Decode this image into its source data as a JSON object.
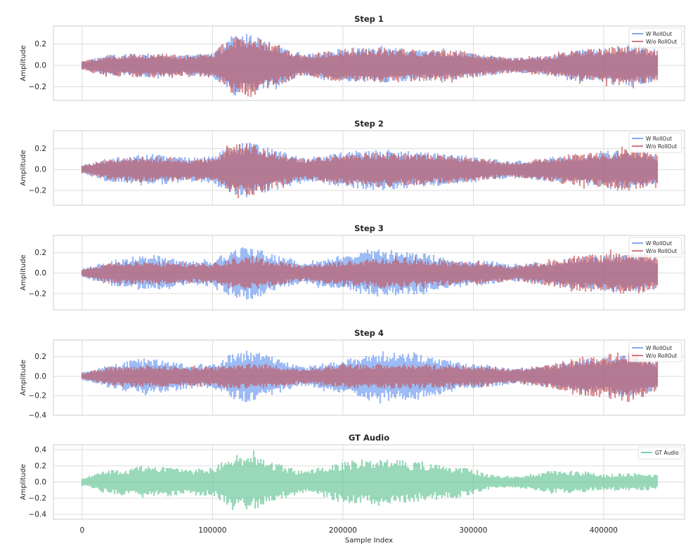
{
  "chart_data": [
    {
      "type": "line",
      "title": "Step 1",
      "xlabel": "",
      "ylabel": "Amplitude",
      "xlim": [
        -22000,
        462000
      ],
      "ylim": [
        -0.33,
        0.37
      ],
      "yticks": [
        -0.2,
        0.0,
        0.2
      ],
      "ytick_labels": [
        "−0.2",
        "0.0",
        "0.2"
      ],
      "xticks": [
        0,
        100000,
        200000,
        300000,
        400000
      ],
      "grid": true,
      "legend_position": "top-right",
      "series": [
        {
          "name": "W RollOut",
          "color": "#5b8def",
          "envelope_x": [
            0,
            20000,
            50000,
            80000,
            100000,
            115000,
            130000,
            145000,
            170000,
            200000,
            230000,
            260000,
            290000,
            310000,
            330000,
            360000,
            380000,
            400000,
            420000,
            441000
          ],
          "envelope_amp": [
            0.04,
            0.1,
            0.12,
            0.1,
            0.12,
            0.28,
            0.3,
            0.22,
            0.1,
            0.16,
            0.17,
            0.15,
            0.14,
            0.1,
            0.07,
            0.1,
            0.15,
            0.17,
            0.2,
            0.15
          ]
        },
        {
          "name": "W/o RollOut",
          "color": "#c44e52",
          "envelope_x": [
            0,
            20000,
            50000,
            80000,
            100000,
            115000,
            130000,
            145000,
            170000,
            200000,
            230000,
            260000,
            290000,
            310000,
            330000,
            360000,
            380000,
            400000,
            420000,
            441000
          ],
          "envelope_amp": [
            0.04,
            0.1,
            0.12,
            0.1,
            0.12,
            0.28,
            0.3,
            0.22,
            0.1,
            0.16,
            0.17,
            0.15,
            0.14,
            0.1,
            0.07,
            0.1,
            0.15,
            0.17,
            0.2,
            0.15
          ]
        }
      ]
    },
    {
      "type": "line",
      "title": "Step 2",
      "xlabel": "",
      "ylabel": "Amplitude",
      "xlim": [
        -22000,
        462000
      ],
      "ylim": [
        -0.34,
        0.37
      ],
      "yticks": [
        -0.2,
        0.0,
        0.2
      ],
      "ytick_labels": [
        "−0.2",
        "0.0",
        "0.2"
      ],
      "xticks": [
        0,
        100000,
        200000,
        300000,
        400000
      ],
      "grid": true,
      "legend_position": "top-right",
      "series": [
        {
          "name": "W RollOut",
          "color": "#5b8def",
          "envelope_x": [
            0,
            20000,
            50000,
            80000,
            100000,
            115000,
            130000,
            145000,
            170000,
            200000,
            230000,
            260000,
            290000,
            310000,
            330000,
            360000,
            380000,
            400000,
            420000,
            441000
          ],
          "envelope_amp": [
            0.04,
            0.12,
            0.16,
            0.12,
            0.13,
            0.25,
            0.27,
            0.2,
            0.11,
            0.17,
            0.2,
            0.17,
            0.14,
            0.11,
            0.08,
            0.12,
            0.15,
            0.16,
            0.2,
            0.14
          ]
        },
        {
          "name": "W/o RollOut",
          "color": "#c44e52",
          "envelope_x": [
            0,
            20000,
            50000,
            80000,
            100000,
            115000,
            130000,
            145000,
            170000,
            200000,
            230000,
            260000,
            290000,
            310000,
            330000,
            360000,
            380000,
            400000,
            420000,
            441000
          ],
          "envelope_amp": [
            0.04,
            0.1,
            0.13,
            0.1,
            0.12,
            0.24,
            0.26,
            0.19,
            0.1,
            0.15,
            0.17,
            0.15,
            0.13,
            0.1,
            0.07,
            0.12,
            0.16,
            0.17,
            0.21,
            0.15
          ]
        }
      ]
    },
    {
      "type": "line",
      "title": "Step 3",
      "xlabel": "",
      "ylabel": "Amplitude",
      "xlim": [
        -22000,
        462000
      ],
      "ylim": [
        -0.36,
        0.37
      ],
      "yticks": [
        -0.2,
        0.0,
        0.2
      ],
      "ytick_labels": [
        "−0.2",
        "0.0",
        "0.2"
      ],
      "xticks": [
        0,
        100000,
        200000,
        300000,
        400000
      ],
      "grid": true,
      "legend_position": "top-right",
      "series": [
        {
          "name": "W RollOut",
          "color": "#5b8def",
          "envelope_x": [
            0,
            20000,
            50000,
            80000,
            100000,
            115000,
            130000,
            145000,
            170000,
            200000,
            230000,
            260000,
            290000,
            310000,
            330000,
            360000,
            380000,
            400000,
            420000,
            441000
          ],
          "envelope_amp": [
            0.04,
            0.12,
            0.19,
            0.12,
            0.12,
            0.24,
            0.27,
            0.2,
            0.1,
            0.17,
            0.24,
            0.2,
            0.14,
            0.12,
            0.08,
            0.12,
            0.16,
            0.17,
            0.21,
            0.15
          ]
        },
        {
          "name": "W/o RollOut",
          "color": "#c44e52",
          "envelope_x": [
            0,
            20000,
            50000,
            80000,
            100000,
            115000,
            130000,
            145000,
            170000,
            200000,
            230000,
            260000,
            290000,
            310000,
            330000,
            360000,
            380000,
            400000,
            420000,
            441000
          ],
          "envelope_amp": [
            0.04,
            0.1,
            0.12,
            0.1,
            0.1,
            0.15,
            0.17,
            0.13,
            0.08,
            0.12,
            0.15,
            0.14,
            0.12,
            0.11,
            0.07,
            0.13,
            0.18,
            0.19,
            0.23,
            0.16
          ]
        }
      ]
    },
    {
      "type": "line",
      "title": "Step 4",
      "xlabel": "",
      "ylabel": "Amplitude",
      "xlim": [
        -22000,
        462000
      ],
      "ylim": [
        -0.4,
        0.37
      ],
      "yticks": [
        -0.4,
        -0.2,
        0.0,
        0.2
      ],
      "ytick_labels": [
        "−0.4",
        "−0.2",
        "0.0",
        "0.2"
      ],
      "xticks": [
        0,
        100000,
        200000,
        300000,
        400000
      ],
      "grid": true,
      "legend_position": "top-right",
      "series": [
        {
          "name": "W RollOut",
          "color": "#5b8def",
          "envelope_x": [
            0,
            20000,
            50000,
            80000,
            100000,
            115000,
            130000,
            145000,
            170000,
            200000,
            230000,
            260000,
            290000,
            310000,
            330000,
            360000,
            380000,
            400000,
            420000,
            441000
          ],
          "envelope_amp": [
            0.04,
            0.12,
            0.2,
            0.13,
            0.12,
            0.24,
            0.28,
            0.2,
            0.1,
            0.18,
            0.26,
            0.24,
            0.14,
            0.12,
            0.08,
            0.12,
            0.18,
            0.19,
            0.23,
            0.16
          ]
        },
        {
          "name": "W/o RollOut",
          "color": "#c44e52",
          "envelope_x": [
            0,
            20000,
            50000,
            80000,
            100000,
            115000,
            130000,
            145000,
            170000,
            200000,
            230000,
            260000,
            290000,
            310000,
            330000,
            360000,
            380000,
            400000,
            420000,
            441000
          ],
          "envelope_amp": [
            0.04,
            0.1,
            0.12,
            0.1,
            0.1,
            0.13,
            0.14,
            0.12,
            0.08,
            0.12,
            0.13,
            0.13,
            0.12,
            0.11,
            0.07,
            0.13,
            0.2,
            0.22,
            0.27,
            0.17
          ]
        }
      ]
    },
    {
      "type": "line",
      "title": "GT Audio",
      "xlabel": "Sample Index",
      "ylabel": "Amplitude",
      "xlim": [
        -22000,
        462000
      ],
      "ylim": [
        -0.46,
        0.46
      ],
      "yticks": [
        -0.4,
        -0.2,
        0.0,
        0.2,
        0.4
      ],
      "ytick_labels": [
        "−0.4",
        "−0.2",
        "0.0",
        "0.2",
        "0.4"
      ],
      "xticks": [
        0,
        100000,
        200000,
        300000,
        400000
      ],
      "xtick_labels": [
        "0",
        "100000",
        "200000",
        "300000",
        "400000"
      ],
      "grid": true,
      "legend_position": "top-right",
      "series": [
        {
          "name": "GT Audio",
          "color": "#55c08a",
          "envelope_x": [
            0,
            20000,
            50000,
            80000,
            100000,
            115000,
            130000,
            145000,
            170000,
            200000,
            230000,
            260000,
            290000,
            310000,
            330000,
            360000,
            380000,
            400000,
            420000,
            441000
          ],
          "envelope_amp": [
            0.05,
            0.15,
            0.2,
            0.16,
            0.18,
            0.32,
            0.36,
            0.25,
            0.14,
            0.26,
            0.3,
            0.24,
            0.2,
            0.1,
            0.07,
            0.14,
            0.14,
            0.1,
            0.12,
            0.09
          ]
        }
      ]
    }
  ]
}
